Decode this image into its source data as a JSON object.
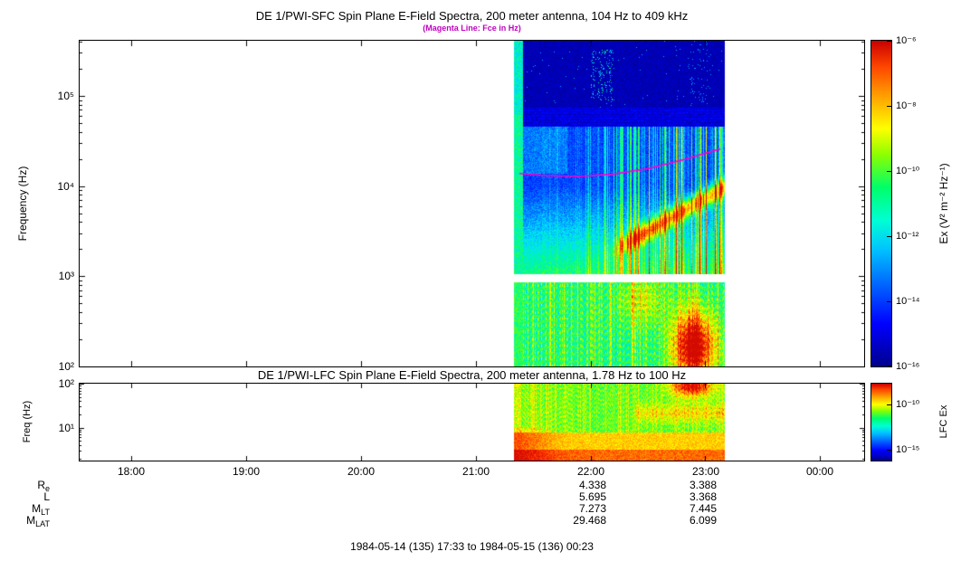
{
  "colors": {
    "magenta_line": "#ff00cc",
    "subtitle": "#c000c0",
    "background": "#ffffff"
  },
  "chart_data": [
    {
      "type": "heatmap",
      "instrument": "DE 1/PWI-SFC",
      "title": "DE 1/PWI-SFC  Spin Plane E-Field Spectra, 200 meter antenna, 104 Hz to 409 kHz",
      "subtitle": "(Magenta Line: Fce in Hz)",
      "ylabel": "Frequency (Hz)",
      "yscale": "log",
      "ymin_hz": 100,
      "ymax_hz": 409000,
      "yticks": [
        {
          "hz": 100000,
          "label": "10⁵"
        },
        {
          "hz": 10000,
          "label": "10⁴"
        },
        {
          "hz": 1000,
          "label": "10³"
        },
        {
          "hz": 100,
          "label": "10²"
        }
      ],
      "x_start": "17:33",
      "x_end": "00:23",
      "x_start_h": 17.55,
      "x_end_h": 24.3833,
      "xticks": [
        "18:00",
        "19:00",
        "20:00",
        "21:00",
        "22:00",
        "23:00",
        "00:00"
      ],
      "xtick_hours": [
        18,
        19,
        20,
        21,
        22,
        23,
        24
      ],
      "data_start_h": 21.33,
      "data_end_h": 23.17,
      "gap_hz": [
        860,
        1060
      ],
      "fce_line_hz": [
        [
          21.38,
          13800
        ],
        [
          21.6,
          13100
        ],
        [
          21.9,
          12800
        ],
        [
          22.2,
          13600
        ],
        [
          22.5,
          15600
        ],
        [
          22.8,
          19500
        ],
        [
          23.13,
          25800
        ]
      ],
      "features": {
        "hf_dark_band_hz": [
          75000,
          409000
        ],
        "striped_band_hz": [
          46000,
          75000
        ],
        "low_band_blob": {
          "t": 22.9,
          "f_hz": 170,
          "amp": 0.55
        },
        "mid_warm_patch": {
          "t": 22.45,
          "f_hz": 550,
          "amp": 0.15
        },
        "diagonal_rise": {
          "t_start": 22.15,
          "f_start_hz": 1800
        }
      },
      "colorbar": {
        "label": "Ex (V² m⁻² Hz⁻¹)",
        "ticks": [
          "10⁻⁶",
          "10⁻⁸",
          "10⁻¹⁰",
          "10⁻¹²",
          "10⁻¹⁴",
          "10⁻¹⁶"
        ]
      }
    },
    {
      "type": "heatmap",
      "instrument": "DE 1/PWI-LFC",
      "title": "DE 1/PWI-LFC  Spin Plane E-Field Spectra, 200 meter antenna, 1.78 Hz to 100 Hz",
      "ylabel": "Freq (Hz)",
      "yscale": "log",
      "ymin_hz": 1.78,
      "ymax_hz": 100,
      "yticks": [
        {
          "hz": 100,
          "label": "10²"
        },
        {
          "hz": 10,
          "label": "10¹"
        }
      ],
      "data_start_h": 21.33,
      "data_end_h": 23.17,
      "features": {
        "top_right_blob": {
          "t": 22.88,
          "f_hz": 90,
          "amp": 0.4
        },
        "mid_stripe": {
          "t_start": 22.4,
          "f_hz": 22,
          "amp": 0.13
        }
      },
      "colorbar": {
        "label": "LFC Ex",
        "ticks": [
          "10⁻¹⁰",
          "10⁻¹⁵"
        ]
      }
    }
  ],
  "footer": {
    "ephemeris_rows": [
      {
        "main": "R",
        "sub": "e",
        "values": [
          "4.338",
          "3.388"
        ]
      },
      {
        "main": "L",
        "sub": "",
        "values": [
          "5.695",
          "3.368"
        ]
      },
      {
        "main": "M",
        "sub": "LT",
        "values": [
          "7.273",
          "7.445"
        ]
      },
      {
        "main": "M",
        "sub": "LAT",
        "values": [
          "29.468",
          "6.099"
        ]
      }
    ],
    "date_range": "1984-05-14 (135) 17:33 to 1984-05-15 (136) 00:23"
  }
}
